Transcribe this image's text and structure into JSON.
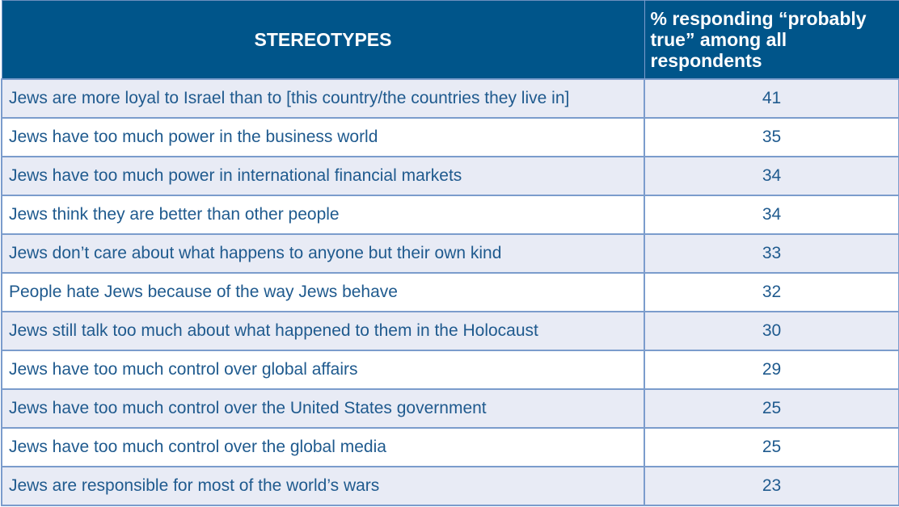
{
  "table": {
    "headers": {
      "stereotype": "STEREOTYPES",
      "percent": "% responding “probably true” among all respondents"
    },
    "rows": [
      {
        "statement": "Jews are more loyal to Israel than to [this country/the countries they live in]",
        "value": "41"
      },
      {
        "statement": "Jews have too much power in the business world",
        "value": "35"
      },
      {
        "statement": "Jews have too much power in international financial markets",
        "value": "34"
      },
      {
        "statement": "Jews think they are better than other people",
        "value": "34"
      },
      {
        "statement": "Jews don’t care about what happens to anyone but their own kind",
        "value": "33"
      },
      {
        "statement": "People hate Jews because of the way Jews behave",
        "value": "32"
      },
      {
        "statement": "Jews still talk too much about what happened to them in the Holocaust",
        "value": "30"
      },
      {
        "statement": "Jews have too much control over global affairs",
        "value": "29"
      },
      {
        "statement": "Jews have too much control over the United States government",
        "value": "25"
      },
      {
        "statement": "Jews have too much control over the global media",
        "value": "25"
      },
      {
        "statement": "Jews are responsible for most of the world’s wars",
        "value": "23"
      }
    ]
  },
  "colors": {
    "header_bg": "#00558a",
    "header_text": "#ffffff",
    "row_alt_bg": "#e8ebf5",
    "row_bg": "#ffffff",
    "border": "#7b9ccc",
    "body_text": "#1f5a8e"
  }
}
